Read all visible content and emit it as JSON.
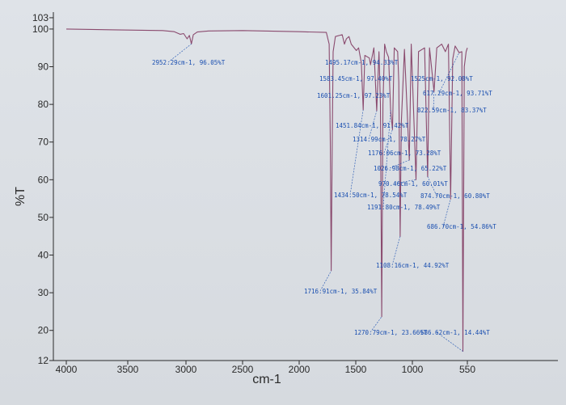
{
  "chart_data": {
    "type": "line",
    "xlabel": "cm-1",
    "ylabel": "%T",
    "xlim": [
      4000,
      350
    ],
    "ylim": [
      12,
      103
    ],
    "x_ticks": [
      "4000",
      "3500",
      "3000",
      "2500",
      "2000",
      "1500",
      "1000",
      "550"
    ],
    "y_ticks": [
      "12",
      "20",
      "30",
      "40",
      "50",
      "60",
      "70",
      "80",
      "90",
      "100",
      "103"
    ],
    "grid": false,
    "colors": {
      "spectrum": "#8a4a6e",
      "annotation": "#1a4fb0",
      "axis": "#2a2a2a"
    },
    "spectrum": [
      [
        4000,
        100
      ],
      [
        3600,
        99.8
      ],
      [
        3200,
        99.6
      ],
      [
        3100,
        99.3
      ],
      [
        3050,
        98.6
      ],
      [
        3020,
        98.8
      ],
      [
        2990,
        97.4
      ],
      [
        2970,
        98.3
      ],
      [
        2952.29,
        96.05
      ],
      [
        2935,
        98.5
      ],
      [
        2900,
        99.2
      ],
      [
        2800,
        99.5
      ],
      [
        2500,
        99.6
      ],
      [
        2000,
        99.3
      ],
      [
        1760,
        99.1
      ],
      [
        1735,
        96
      ],
      [
        1725,
        70
      ],
      [
        1716.91,
        35.84
      ],
      [
        1708,
        70
      ],
      [
        1700,
        94
      ],
      [
        1680,
        98
      ],
      [
        1620,
        98.5
      ],
      [
        1600,
        96
      ],
      [
        1583,
        97.4
      ],
      [
        1560,
        98
      ],
      [
        1540,
        96
      ],
      [
        1495,
        94.3
      ],
      [
        1475,
        95
      ],
      [
        1451,
        91
      ],
      [
        1434.5,
        78.54
      ],
      [
        1420,
        93
      ],
      [
        1380,
        92.3
      ],
      [
        1370,
        90.5
      ],
      [
        1340,
        95
      ],
      [
        1314.99,
        78.27
      ],
      [
        1295,
        94
      ],
      [
        1282,
        80
      ],
      [
        1270.79,
        23.66
      ],
      [
        1260,
        80
      ],
      [
        1245,
        96
      ],
      [
        1230,
        94
      ],
      [
        1210,
        92.5
      ],
      [
        1191.8,
        78.49
      ],
      [
        1176.06,
        73.28
      ],
      [
        1160,
        95
      ],
      [
        1130,
        94
      ],
      [
        1120,
        86
      ],
      [
        1108.16,
        44.92
      ],
      [
        1098,
        75
      ],
      [
        1070,
        94.6
      ],
      [
        1026.98,
        65.22
      ],
      [
        1010,
        96
      ],
      [
        970.46,
        60.01
      ],
      [
        950,
        94
      ],
      [
        900,
        95
      ],
      [
        874.7,
        60.8
      ],
      [
        860,
        95
      ],
      [
        822.59,
        83.37
      ],
      [
        800,
        95
      ],
      [
        760,
        96
      ],
      [
        730,
        94
      ],
      [
        705,
        96
      ],
      [
        686.7,
        54.86
      ],
      [
        670,
        92
      ],
      [
        650,
        95.5
      ],
      [
        617.29,
        93.71
      ],
      [
        595,
        94
      ],
      [
        586.62,
        14.44
      ],
      [
        575,
        90
      ],
      [
        560,
        94
      ],
      [
        550,
        95
      ]
    ],
    "annotations": [
      {
        "x": 2952.29,
        "text": "2952.29cm-1, 96.05%T"
      },
      {
        "x": 1495.17,
        "text": "1495.17cm-1, 94.33%T"
      },
      {
        "x": 1583.45,
        "text": "1583.45cm-1, 97.40%T"
      },
      {
        "x": 1601.25,
        "text": "1601.25cm-1, 97.23%T"
      },
      {
        "x": 1525,
        "text": "1525cm-1, 92.08%T"
      },
      {
        "x": 617.29,
        "text": "617.29cm-1, 93.71%T"
      },
      {
        "x": 822.59,
        "text": "822.59cm-1, 83.37%T"
      },
      {
        "x": 1451.84,
        "text": "1451.84cm-1, 91.42%T"
      },
      {
        "x": 1314.99,
        "text": "1314.99cm-1, 78.27%T"
      },
      {
        "x": 1176.06,
        "text": "1176.06cm-1, 73.28%T"
      },
      {
        "x": 1026.98,
        "text": "1026.98cm-1, 65.22%T"
      },
      {
        "x": 970.46,
        "text": "970.46cm-1, 60.01%T"
      },
      {
        "x": 1434.5,
        "text": "1434.50cm-1, 78.54%T"
      },
      {
        "x": 874.7,
        "text": "874.70cm-1, 60.80%T"
      },
      {
        "x": 1191.8,
        "text": "1191.80cm-1, 78.49%T"
      },
      {
        "x": 686.7,
        "text": "686.70cm-1, 54.86%T"
      },
      {
        "x": 1108.16,
        "text": "1108.16cm-1, 44.92%T"
      },
      {
        "x": 1716.91,
        "text": "1716.91cm-1, 35.84%T"
      },
      {
        "x": 1270.79,
        "text": "1270.79cm-1, 23.66%T"
      },
      {
        "x": 586.62,
        "text": "586.62cm-1, 14.44%T"
      }
    ]
  }
}
